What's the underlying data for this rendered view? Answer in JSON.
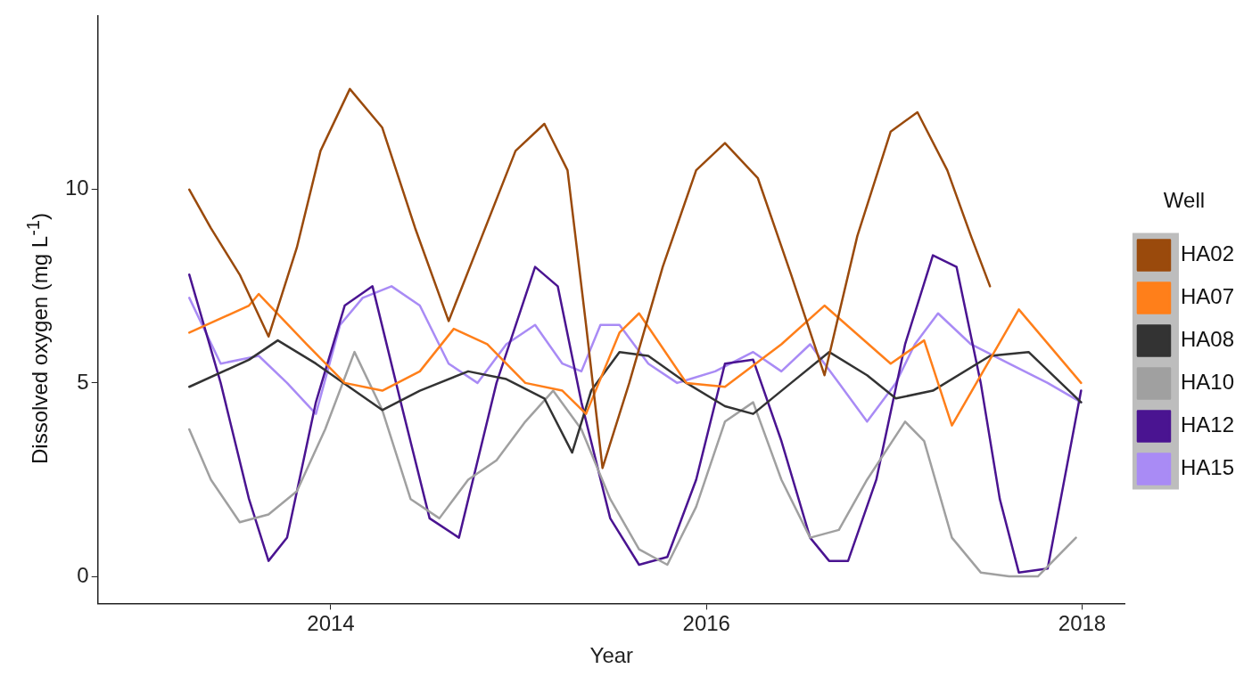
{
  "chart_data": {
    "type": "line",
    "xlabel": "Year",
    "ylabel": "Dissolved oxygen (mg L$^{-1}$)",
    "legend_title": "Well",
    "legend": "right",
    "grid": false,
    "marker": "none",
    "line_style": "solid",
    "xlim": [
      "2012-10-05",
      "2018-03-26"
    ],
    "xticks": [
      "2014",
      "2016",
      "2018"
    ],
    "ylim": [
      -0.7,
      14.5
    ],
    "yticks": [
      0,
      5,
      10
    ],
    "series": [
      {
        "name": "HA02",
        "color": "#9a4a0c",
        "x": [
          "2013-04-01",
          "2013-05-13",
          "2013-07-08",
          "2013-09-02",
          "2013-10-27",
          "2013-12-12",
          "2014-02-07",
          "2014-04-11",
          "2014-06-14",
          "2014-08-18",
          "2014-10-22",
          "2014-12-26",
          "2015-02-20",
          "2015-04-06",
          "2015-05-12",
          "2015-06-13",
          "2015-08-04",
          "2015-10-08",
          "2015-12-12",
          "2016-02-06",
          "2016-04-10",
          "2016-06-14",
          "2016-08-18",
          "2016-10-21",
          "2016-12-25",
          "2017-02-15",
          "2017-04-14",
          "2017-05-30",
          "2017-07-06"
        ],
        "values": [
          10.0,
          9.0,
          7.8,
          6.2,
          8.5,
          11.0,
          12.6,
          11.6,
          9.0,
          6.6,
          8.8,
          11.0,
          11.7,
          10.5,
          6.5,
          2.8,
          5.0,
          8.0,
          10.5,
          11.2,
          10.3,
          7.8,
          5.2,
          8.8,
          11.5,
          12.0,
          10.5,
          8.8,
          7.5
        ]
      },
      {
        "name": "HA07",
        "color": "#ff7f1a",
        "x": [
          "2013-04-01",
          "2013-07-26",
          "2013-08-14",
          "2013-11-15",
          "2014-01-28",
          "2014-04-11",
          "2014-06-23",
          "2014-08-28",
          "2014-11-01",
          "2015-01-14",
          "2015-03-27",
          "2015-05-12",
          "2015-07-16",
          "2015-08-23",
          "2015-11-23",
          "2016-02-06",
          "2016-05-26",
          "2016-08-18",
          "2016-12-25",
          "2017-02-28",
          "2017-04-23",
          "2017-08-31",
          "2017-12-30"
        ],
        "values": [
          6.3,
          7.0,
          7.3,
          6.0,
          5.0,
          4.8,
          5.3,
          6.4,
          6.0,
          5.0,
          4.8,
          4.2,
          6.3,
          6.8,
          5.0,
          4.9,
          6.0,
          7.0,
          5.5,
          6.1,
          3.9,
          6.9,
          5.0
        ]
      },
      {
        "name": "HA08",
        "color": "#333333",
        "x": [
          "2013-04-01",
          "2013-07-26",
          "2013-09-20",
          "2013-12-03",
          "2014-02-16",
          "2014-04-11",
          "2014-06-23",
          "2014-09-25",
          "2014-12-08",
          "2015-02-20",
          "2015-04-15",
          "2015-05-22",
          "2015-07-16",
          "2015-09-10",
          "2015-11-23",
          "2016-02-06",
          "2016-04-01",
          "2016-06-14",
          "2016-08-27",
          "2016-11-09",
          "2017-01-04",
          "2017-03-17",
          "2017-07-06",
          "2017-09-19",
          "2017-12-30"
        ],
        "values": [
          4.9,
          5.6,
          6.1,
          5.5,
          4.8,
          4.3,
          4.8,
          5.3,
          5.1,
          4.6,
          3.2,
          4.8,
          5.8,
          5.7,
          5.0,
          4.4,
          4.2,
          5.0,
          5.8,
          5.2,
          4.6,
          4.8,
          5.7,
          5.8,
          4.5
        ]
      },
      {
        "name": "HA10",
        "color": "#a0a0a0",
        "x": [
          "2013-04-01",
          "2013-05-13",
          "2013-07-08",
          "2013-09-02",
          "2013-10-27",
          "2013-12-21",
          "2014-02-16",
          "2014-04-11",
          "2014-06-05",
          "2014-07-31",
          "2014-09-25",
          "2014-11-19",
          "2015-01-14",
          "2015-03-09",
          "2015-05-03",
          "2015-06-28",
          "2015-08-23",
          "2015-10-17",
          "2015-12-12",
          "2016-02-06",
          "2016-04-01",
          "2016-05-26",
          "2016-07-21",
          "2016-09-15",
          "2016-11-09",
          "2017-01-22",
          "2017-02-28",
          "2017-04-23",
          "2017-06-18",
          "2017-08-12",
          "2017-10-07",
          "2017-12-20"
        ],
        "values": [
          3.8,
          2.5,
          1.4,
          1.6,
          2.2,
          3.8,
          5.8,
          4.3,
          2.0,
          1.5,
          2.5,
          3.0,
          4.0,
          4.8,
          3.8,
          2.0,
          0.7,
          0.3,
          1.8,
          4.0,
          4.5,
          2.5,
          1.0,
          1.2,
          2.5,
          4.0,
          3.5,
          1.0,
          0.1,
          0.0,
          0.0,
          1.0
        ]
      },
      {
        "name": "HA12",
        "color": "#4a1491",
        "x": [
          "2013-04-01",
          "2013-06-01",
          "2013-07-26",
          "2013-09-02",
          "2013-10-08",
          "2013-12-03",
          "2014-01-28",
          "2014-03-23",
          "2014-05-17",
          "2014-07-12",
          "2014-09-07",
          "2014-11-19",
          "2015-02-02",
          "2015-03-18",
          "2015-05-03",
          "2015-06-28",
          "2015-08-23",
          "2015-10-17",
          "2015-12-12",
          "2016-02-06",
          "2016-04-01",
          "2016-05-26",
          "2016-07-21",
          "2016-08-27",
          "2016-10-03",
          "2016-11-27",
          "2017-01-22",
          "2017-03-17",
          "2017-05-02",
          "2017-06-18",
          "2017-07-25",
          "2017-08-31",
          "2017-10-26",
          "2017-12-30"
        ],
        "values": [
          7.8,
          5.0,
          2.0,
          0.4,
          1.0,
          4.5,
          7.0,
          7.5,
          4.5,
          1.5,
          1.0,
          5.0,
          8.0,
          7.5,
          4.5,
          1.5,
          0.3,
          0.5,
          2.5,
          5.5,
          5.6,
          3.5,
          1.0,
          0.4,
          0.4,
          2.5,
          6.0,
          8.3,
          8.0,
          5.0,
          2.0,
          0.1,
          0.2,
          4.8
        ]
      },
      {
        "name": "HA15",
        "color": "#a98bf5",
        "x": [
          "2013-04-01",
          "2013-06-01",
          "2013-08-14",
          "2013-10-08",
          "2013-12-03",
          "2014-01-19",
          "2014-03-04",
          "2014-04-29",
          "2014-06-23",
          "2014-08-18",
          "2014-10-13",
          "2014-12-08",
          "2015-02-02",
          "2015-03-27",
          "2015-05-03",
          "2015-06-09",
          "2015-07-16",
          "2015-09-10",
          "2015-11-05",
          "2016-01-18",
          "2016-04-01",
          "2016-05-26",
          "2016-07-21",
          "2016-09-15",
          "2016-11-09",
          "2017-01-04",
          "2017-02-10",
          "2017-03-27",
          "2017-05-30",
          "2017-08-12",
          "2017-10-26",
          "2017-12-30"
        ],
        "values": [
          7.2,
          5.5,
          5.7,
          5.0,
          4.2,
          6.5,
          7.2,
          7.5,
          7.0,
          5.5,
          5.0,
          6.0,
          6.5,
          5.5,
          5.3,
          6.5,
          6.5,
          5.5,
          5.0,
          5.3,
          5.8,
          5.3,
          6.0,
          5.0,
          4.0,
          5.0,
          6.0,
          6.8,
          6.0,
          5.5,
          5.0,
          4.5
        ]
      }
    ]
  }
}
